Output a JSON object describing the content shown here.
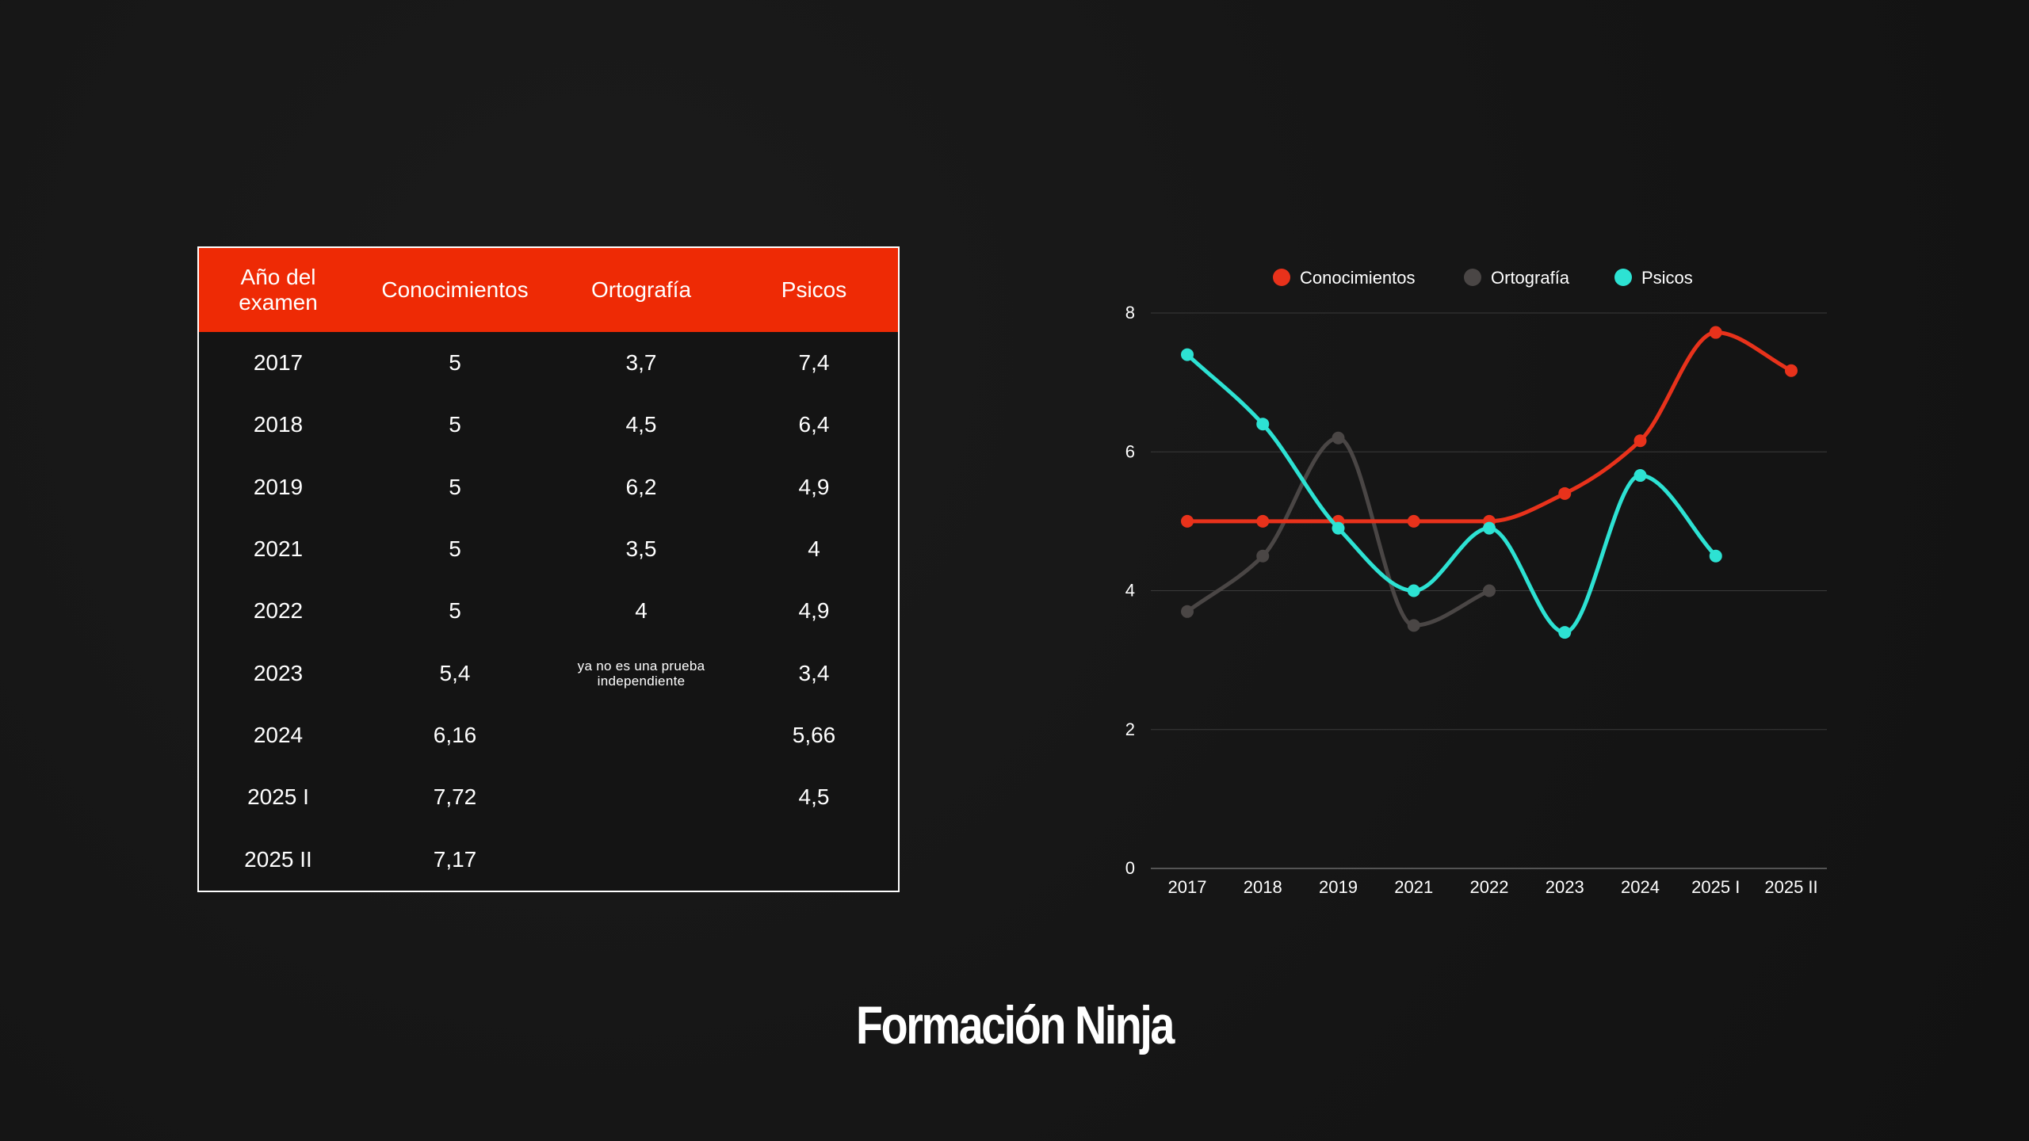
{
  "table": {
    "headers": [
      "Año del examen",
      "Conocimientos",
      "Ortografía",
      "Psicos"
    ],
    "rows": [
      [
        "2017",
        "5",
        "3,7",
        "7,4"
      ],
      [
        "2018",
        "5",
        "4,5",
        "6,4"
      ],
      [
        "2019",
        "5",
        "6,2",
        "4,9"
      ],
      [
        "2021",
        "5",
        "3,5",
        "4"
      ],
      [
        "2022",
        "5",
        "4",
        "4,9"
      ],
      [
        "2023",
        "5,4",
        "ya no es una prueba independiente",
        "3,4"
      ],
      [
        "2024",
        "6,16",
        "",
        "5,66"
      ],
      [
        "2025 I",
        "7,72",
        "",
        "4,5"
      ],
      [
        "2025 II",
        "7,17",
        "",
        ""
      ]
    ]
  },
  "chart_data": {
    "type": "line",
    "title": "",
    "xlabel": "",
    "ylabel": "",
    "categories": [
      "2017",
      "2018",
      "2019",
      "2021",
      "2022",
      "2023",
      "2024",
      "2025 I",
      "2025 II"
    ],
    "ylim": [
      0,
      8
    ],
    "yticks": [
      0,
      2,
      4,
      6,
      8
    ],
    "grid": true,
    "legend": "top",
    "smooth": true,
    "series": [
      {
        "name": "Conocimientos",
        "color": "#e8321b",
        "values": [
          5,
          5,
          5,
          5,
          5,
          5.4,
          6.16,
          7.72,
          7.17
        ]
      },
      {
        "name": "Ortografía",
        "color": "#4a4645",
        "values": [
          3.7,
          4.5,
          6.2,
          3.5,
          4,
          null,
          null,
          null,
          null
        ]
      },
      {
        "name": "Psicos",
        "color": "#2de2d3",
        "values": [
          7.4,
          6.4,
          4.9,
          4,
          4.9,
          3.4,
          5.66,
          4.5,
          null
        ]
      }
    ]
  },
  "logo": {
    "text": "Formación Ninja"
  },
  "colors": {
    "background": "#151515",
    "header": "#ee2a05",
    "text": "#ffffff"
  }
}
